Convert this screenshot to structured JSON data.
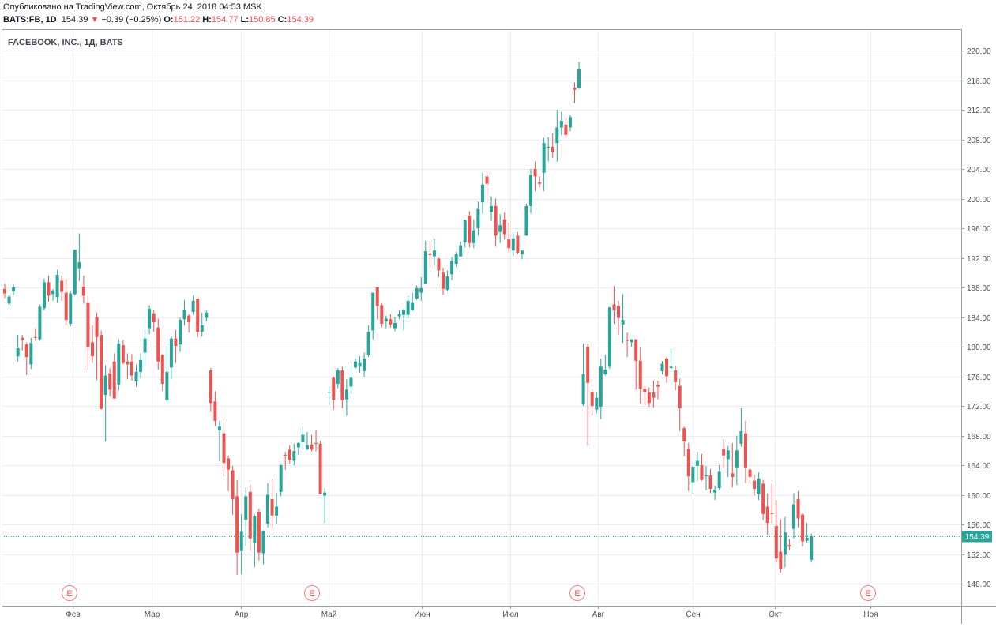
{
  "header": {
    "published": "Опубликовано на TradingView.com, Октябрь 24, 2018 04:53 MSK",
    "symbol": "BATS:FB, 1D",
    "last": "154.39",
    "change_arrow": "▼",
    "change": "−0.39 (−0.25%)",
    "o_label": "O:",
    "o": "151.22",
    "h_label": "H:",
    "h": "154.77",
    "l_label": "L:",
    "l": "150.85",
    "c_label": "C:",
    "c": "154.39"
  },
  "colors": {
    "up": "#26a69a",
    "down": "#ef5350",
    "grid": "#e9ecf2",
    "axis": "#9aa0a6",
    "price_line": "#26a69a"
  },
  "chart_data": {
    "type": "candlestick",
    "title": "FACEBOOK, INC., 1Д, BATS",
    "ylim": [
      145.5,
      222
    ],
    "y_ticks": [
      "220.00",
      "216.00",
      "212.00",
      "208.00",
      "204.00",
      "200.00",
      "196.00",
      "192.00",
      "188.00",
      "184.00",
      "180.00",
      "176.00",
      "172.00",
      "168.00",
      "164.00",
      "160.00",
      "156.00",
      "152.00",
      "148.00"
    ],
    "x_ticks": [
      "Фев",
      "Мар",
      "Апр",
      "Май",
      "Июн",
      "Июл",
      "Авг",
      "Сен",
      "Окт",
      "Ноя"
    ],
    "earnings_markers": [
      "E",
      "E",
      "E",
      "E"
    ],
    "last_price_label": "154.39",
    "note": "each candle: [open, high, low, close]",
    "candles": [
      [
        187.8,
        188.5,
        186.6,
        187.2
      ],
      [
        185.8,
        187.0,
        185.5,
        186.8
      ],
      [
        187.5,
        188.4,
        187.0,
        188.0
      ],
      [
        178.7,
        181.6,
        178.0,
        179.8
      ],
      [
        181.2,
        181.6,
        179.5,
        180.9
      ],
      [
        180.3,
        180.6,
        176.2,
        178.6
      ],
      [
        177.6,
        181.2,
        177.0,
        180.5
      ],
      [
        181.3,
        182.5,
        180.8,
        181.2
      ],
      [
        181.0,
        185.7,
        180.8,
        185.4
      ],
      [
        185.2,
        189.2,
        184.9,
        188.7
      ],
      [
        188.7,
        189.6,
        186.1,
        186.9
      ],
      [
        187.1,
        187.8,
        186.2,
        187.6
      ],
      [
        186.7,
        190.4,
        185.9,
        189.7
      ],
      [
        188.9,
        189.6,
        186.2,
        187.4
      ],
      [
        187.3,
        189.2,
        182.9,
        183.6
      ],
      [
        183.1,
        187.6,
        182.8,
        187.2
      ],
      [
        187.1,
        193.1,
        186.9,
        193.1
      ],
      [
        190.6,
        195.3,
        188.9,
        191.4
      ],
      [
        188.1,
        189.6,
        185.8,
        186.9
      ],
      [
        185.9,
        186.9,
        176.9,
        179.9
      ],
      [
        180.6,
        182.9,
        177.8,
        178.7
      ],
      [
        184.0,
        184.6,
        175.5,
        181.3
      ],
      [
        181.6,
        182.2,
        171.5,
        171.6
      ],
      [
        173.5,
        177.5,
        167.2,
        176.1
      ],
      [
        176.4,
        177.1,
        173.3,
        174.2
      ],
      [
        178.0,
        179.1,
        173.0,
        173.0
      ],
      [
        174.9,
        181.0,
        174.1,
        180.4
      ],
      [
        180.2,
        180.9,
        177.6,
        177.8
      ],
      [
        178.0,
        179.1,
        175.6,
        177.6
      ],
      [
        178.0,
        179.0,
        175.4,
        176.1
      ],
      [
        175.3,
        177.6,
        174.6,
        176.6
      ],
      [
        176.6,
        179.1,
        175.7,
        178.2
      ],
      [
        179.2,
        182.4,
        177.3,
        181.1
      ],
      [
        182.5,
        185.6,
        181.7,
        185.1
      ],
      [
        184.5,
        185.0,
        182.0,
        183.3
      ],
      [
        182.6,
        183.8,
        176.9,
        178.0
      ],
      [
        178.9,
        179.0,
        174.0,
        175.0
      ],
      [
        172.8,
        180.0,
        172.5,
        176.6
      ],
      [
        177.2,
        181.4,
        175.6,
        181.1
      ],
      [
        181.1,
        182.3,
        177.8,
        180.1
      ],
      [
        180.3,
        183.9,
        179.3,
        183.6
      ],
      [
        183.7,
        186.3,
        182.9,
        185.0
      ],
      [
        184.2,
        184.4,
        181.9,
        183.3
      ],
      [
        184.7,
        186.9,
        184.3,
        186.2
      ],
      [
        186.5,
        186.5,
        181.3,
        182.0
      ],
      [
        182.0,
        184.6,
        181.4,
        182.9
      ],
      [
        183.9,
        184.9,
        183.4,
        184.6
      ],
      [
        176.8,
        177.1,
        171.2,
        172.4
      ],
      [
        172.6,
        174.0,
        169.3,
        170.0
      ],
      [
        168.7,
        170.0,
        164.5,
        169.2
      ],
      [
        168.3,
        169.8,
        162.5,
        164.3
      ],
      [
        164.9,
        165.3,
        160.5,
        163.4
      ],
      [
        163.3,
        163.9,
        157.3,
        159.4
      ],
      [
        159.8,
        162.0,
        149.2,
        152.2
      ],
      [
        152.4,
        157.4,
        149.3,
        155.0
      ],
      [
        156.6,
        161.0,
        153.1,
        159.8
      ],
      [
        160.4,
        161.4,
        152.5,
        154.1
      ],
      [
        153.5,
        157.3,
        150.2,
        157.1
      ],
      [
        157.7,
        158.1,
        151.1,
        152.2
      ],
      [
        152.1,
        155.2,
        150.6,
        155.1
      ],
      [
        156.1,
        161.6,
        155.6,
        160.0
      ],
      [
        159.4,
        162.2,
        155.4,
        157.2
      ],
      [
        157.2,
        160.3,
        156.0,
        158.4
      ],
      [
        160.4,
        164.1,
        159.8,
        164.0
      ],
      [
        165.4,
        165.8,
        163.4,
        165.3
      ],
      [
        166.1,
        166.7,
        164.2,
        164.7
      ],
      [
        164.6,
        166.9,
        164.0,
        165.9
      ],
      [
        166.4,
        167.1,
        165.4,
        167.0
      ],
      [
        167.1,
        169.2,
        166.1,
        168.1
      ],
      [
        166.2,
        168.5,
        166.0,
        166.7
      ],
      [
        166.8,
        168.1,
        165.9,
        166.1
      ],
      [
        167.0,
        168.8,
        165.9,
        166.9
      ],
      [
        166.9,
        167.3,
        160.8,
        160.1
      ],
      [
        159.9,
        160.9,
        156.2,
        160.3
      ],
      [
        173.8,
        174.7,
        172.1,
        173.9
      ],
      [
        175.8,
        176.0,
        171.5,
        172.8
      ],
      [
        175.0,
        177.1,
        174.4,
        176.8
      ],
      [
        176.8,
        177.3,
        171.7,
        172.8
      ],
      [
        172.9,
        175.6,
        170.7,
        174.2
      ],
      [
        174.6,
        177.5,
        173.6,
        175.8
      ],
      [
        177.2,
        178.4,
        177.0,
        178.0
      ],
      [
        177.3,
        178.7,
        176.5,
        177.8
      ],
      [
        176.7,
        179.2,
        175.9,
        178.4
      ],
      [
        178.9,
        182.9,
        178.6,
        182.0
      ],
      [
        182.2,
        187.3,
        181.0,
        187.3
      ],
      [
        188.0,
        188.0,
        183.7,
        185.5
      ],
      [
        185.6,
        185.9,
        182.6,
        183.1
      ],
      [
        183.4,
        184.2,
        182.5,
        183.8
      ],
      [
        183.7,
        184.4,
        182.6,
        183.0
      ],
      [
        182.5,
        184.0,
        182.1,
        183.2
      ],
      [
        184.1,
        184.9,
        183.7,
        184.4
      ],
      [
        184.3,
        185.1,
        182.2,
        185.0
      ],
      [
        184.3,
        186.8,
        183.8,
        186.2
      ],
      [
        185.0,
        187.3,
        184.8,
        185.9
      ],
      [
        186.5,
        188.3,
        186.3,
        187.9
      ],
      [
        187.3,
        189.4,
        186.2,
        187.9
      ],
      [
        188.5,
        194.3,
        188.4,
        192.9
      ],
      [
        192.6,
        194.3,
        190.7,
        192.4
      ],
      [
        192.2,
        194.6,
        191.0,
        193.0
      ],
      [
        191.9,
        192.0,
        189.4,
        190.3
      ],
      [
        190.0,
        190.7,
        187.0,
        187.8
      ],
      [
        187.7,
        190.3,
        187.5,
        189.5
      ],
      [
        189.8,
        192.1,
        189.0,
        191.6
      ],
      [
        191.2,
        192.8,
        190.8,
        192.5
      ],
      [
        192.2,
        194.2,
        192.2,
        193.7
      ],
      [
        194.1,
        197.2,
        193.4,
        197.1
      ],
      [
        197.7,
        198.3,
        193.4,
        194.0
      ],
      [
        194.0,
        197.2,
        193.3,
        195.7
      ],
      [
        196.0,
        199.6,
        195.0,
        198.6
      ],
      [
        199.5,
        203.5,
        198.0,
        201.9
      ],
      [
        203.0,
        203.6,
        200.0,
        202.0
      ],
      [
        198.2,
        200.3,
        197.0,
        199.0
      ],
      [
        199.0,
        200.0,
        193.5,
        195.0
      ],
      [
        195.5,
        197.9,
        194.0,
        196.4
      ],
      [
        197.2,
        198.1,
        194.5,
        195.2
      ],
      [
        194.5,
        196.8,
        192.7,
        193.3
      ],
      [
        193.0,
        195.3,
        192.3,
        194.6
      ],
      [
        195.0,
        195.5,
        192.5,
        192.7
      ],
      [
        192.5,
        193.0,
        191.8,
        193.0
      ],
      [
        195.0,
        199.3,
        195.0,
        199.0
      ],
      [
        199.0,
        204.0,
        198.0,
        203.2
      ],
      [
        204.0,
        205.0,
        201.0,
        203.0
      ],
      [
        202.2,
        203.0,
        201.5,
        202.0
      ],
      [
        203.5,
        208.2,
        201.0,
        207.5
      ],
      [
        207.0,
        208.3,
        205.0,
        207.0
      ],
      [
        207.0,
        208.8,
        205.5,
        206.3
      ],
      [
        207.5,
        212.0,
        205.0,
        209.6
      ],
      [
        209.6,
        211.7,
        208.6,
        210.5
      ],
      [
        210.0,
        210.9,
        208.2,
        208.6
      ],
      [
        209.6,
        211.3,
        209.1,
        211.0
      ],
      [
        215.0,
        215.7,
        212.9,
        214.7
      ],
      [
        214.9,
        218.5,
        214.8,
        217.5
      ],
      [
        172.2,
        180.4,
        172.0,
        176.3
      ],
      [
        180.0,
        180.4,
        166.6,
        175.1
      ],
      [
        173.9,
        174.3,
        170.7,
        172.0
      ],
      [
        171.5,
        173.9,
        171.0,
        173.1
      ],
      [
        171.9,
        178.4,
        170.2,
        177.3
      ],
      [
        176.3,
        178.9,
        176.1,
        176.9
      ],
      [
        177.3,
        185.4,
        177.0,
        185.3
      ],
      [
        185.7,
        188.2,
        183.1,
        184.9
      ],
      [
        185.5,
        186.2,
        181.6,
        183.9
      ],
      [
        183.0,
        187.1,
        180.5,
        183.6
      ],
      [
        180.9,
        181.9,
        178.6,
        180.8
      ],
      [
        180.6,
        181.0,
        180.0,
        181.0
      ],
      [
        181.0,
        181.0,
        174.2,
        178.1
      ],
      [
        178.1,
        179.9,
        172.3,
        174.3
      ],
      [
        174.3,
        174.7,
        172.1,
        173.9
      ],
      [
        173.8,
        174.5,
        171.9,
        172.4
      ],
      [
        173.8,
        175.4,
        171.8,
        173.1
      ],
      [
        174.8,
        175.4,
        172.9,
        174.6
      ],
      [
        176.7,
        178.1,
        176.3,
        177.7
      ],
      [
        178.4,
        178.6,
        175.1,
        176.0
      ],
      [
        177.1,
        179.8,
        176.6,
        177.3
      ],
      [
        176.8,
        177.4,
        174.1,
        175.2
      ],
      [
        174.7,
        175.7,
        168.6,
        171.7
      ],
      [
        169.0,
        169.2,
        165.2,
        167.2
      ],
      [
        166.2,
        167.0,
        160.5,
        162.5
      ],
      [
        161.7,
        164.4,
        160.1,
        163.8
      ],
      [
        163.9,
        165.8,
        161.9,
        164.6
      ],
      [
        164.0,
        165.5,
        161.9,
        162.0
      ],
      [
        162.6,
        163.9,
        160.6,
        162.6
      ],
      [
        162.6,
        163.5,
        160.2,
        160.8
      ],
      [
        160.3,
        161.2,
        159.3,
        160.7
      ],
      [
        160.9,
        164.0,
        160.7,
        163.1
      ],
      [
        166.2,
        167.5,
        163.6,
        165.3
      ],
      [
        164.8,
        166.6,
        162.4,
        166.0
      ],
      [
        162.9,
        167.0,
        161.0,
        162.4
      ],
      [
        163.7,
        168.0,
        161.3,
        166.0
      ],
      [
        166.9,
        171.7,
        166.5,
        168.6
      ],
      [
        168.3,
        170.0,
        161.6,
        163.7
      ],
      [
        163.4,
        163.7,
        161.4,
        162.4
      ],
      [
        161.9,
        162.7,
        159.9,
        160.8
      ],
      [
        160.1,
        163.0,
        159.3,
        162.2
      ],
      [
        161.5,
        162.0,
        156.6,
        157.4
      ],
      [
        158.4,
        160.2,
        154.6,
        156.2
      ],
      [
        157.5,
        161.5,
        156.1,
        157.4
      ],
      [
        155.8,
        159.3,
        150.9,
        151.4
      ],
      [
        152.3,
        156.7,
        149.5,
        150.0
      ],
      [
        151.9,
        157.0,
        150.2,
        154.9
      ],
      [
        153.2,
        154.0,
        152.5,
        153.0
      ],
      [
        155.4,
        160.2,
        154.1,
        158.7
      ],
      [
        159.4,
        160.5,
        155.6,
        156.8
      ],
      [
        157.3,
        157.5,
        153.0,
        153.7
      ],
      [
        153.8,
        156.2,
        153.5,
        154.2
      ],
      [
        151.22,
        154.77,
        150.85,
        154.39
      ]
    ]
  }
}
